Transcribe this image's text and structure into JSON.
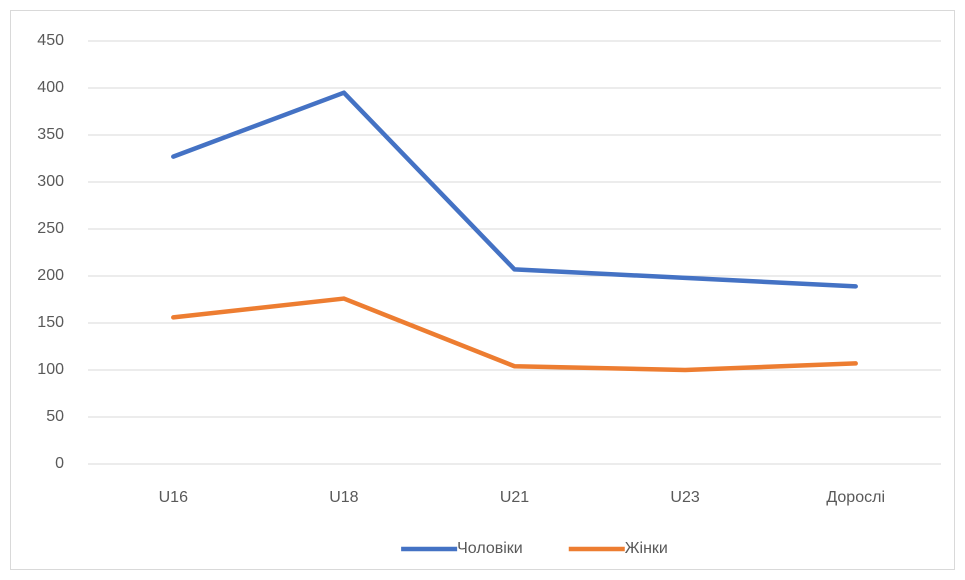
{
  "chart_data": {
    "type": "line",
    "categories": [
      "U16",
      "U18",
      "U21",
      "U23",
      "Дорослі"
    ],
    "series": [
      {
        "name": "Чоловіки",
        "color": "#4472c4",
        "values": [
          327,
          395,
          207,
          198,
          189
        ]
      },
      {
        "name": "Жінки",
        "color": "#ed7d31",
        "values": [
          156,
          176,
          104,
          100,
          107
        ]
      }
    ],
    "ylim": [
      0,
      450
    ],
    "yticks": [
      0,
      50,
      100,
      150,
      200,
      250,
      300,
      350,
      400,
      450
    ],
    "grid": true,
    "legend": "bottom"
  }
}
